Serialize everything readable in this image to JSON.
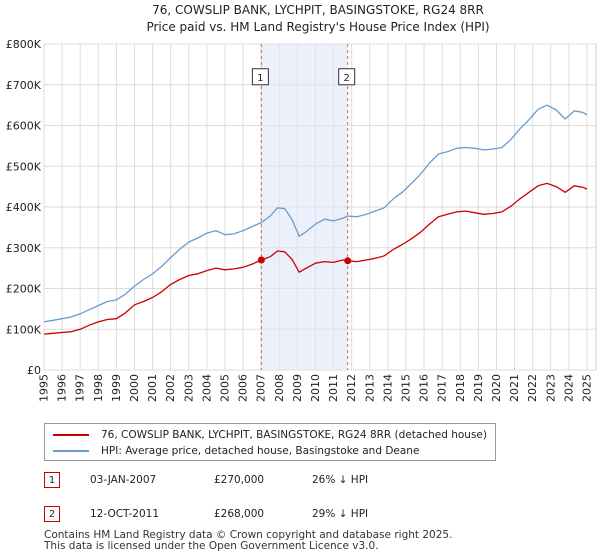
{
  "chart_data": {
    "type": "line",
    "title": "76, COWSLIP BANK, LYCHPIT, BASINGSTOKE, RG24 8RR",
    "subtitle": "Price paid vs. HM Land Registry's House Price Index (HPI)",
    "xlim": [
      1995,
      2025.5
    ],
    "ylim": [
      0,
      800000
    ],
    "y_ticks": [
      0,
      100000,
      200000,
      300000,
      400000,
      500000,
      600000,
      700000,
      800000
    ],
    "y_tick_labels": [
      "£0",
      "£100K",
      "£200K",
      "£300K",
      "£400K",
      "£500K",
      "£600K",
      "£700K",
      "£800K"
    ],
    "x_ticks": [
      1995,
      1996,
      1997,
      1998,
      1999,
      2000,
      2001,
      2002,
      2003,
      2004,
      2005,
      2006,
      2007,
      2008,
      2009,
      2010,
      2011,
      2012,
      2013,
      2014,
      2015,
      2016,
      2017,
      2018,
      2019,
      2020,
      2021,
      2022,
      2023,
      2024,
      2025
    ],
    "x_tick_labels": [
      "1995",
      "1996",
      "1997",
      "1998",
      "1999",
      "2000",
      "2001",
      "2002",
      "2003",
      "2004",
      "2005",
      "2006",
      "2007",
      "2008",
      "2009",
      "2010",
      "2011",
      "2012",
      "2013",
      "2014",
      "2015",
      "2016",
      "2017",
      "2018",
      "2019",
      "2020",
      "2021",
      "2022",
      "2023",
      "2024",
      "2025"
    ],
    "grid": true,
    "shaded_region": [
      2007.01,
      2011.78
    ],
    "series": [
      {
        "name": "76, COWSLIP BANK, LYCHPIT, BASINGSTOKE, RG24 8RR (detached house)",
        "color": "#cc0000",
        "points": [
          [
            1995.0,
            88000
          ],
          [
            1995.5,
            90000
          ],
          [
            1996.0,
            92000
          ],
          [
            1996.5,
            94000
          ],
          [
            1997.0,
            100000
          ],
          [
            1997.5,
            110000
          ],
          [
            1998.0,
            118000
          ],
          [
            1998.5,
            124000
          ],
          [
            1999.0,
            126000
          ],
          [
            1999.5,
            140000
          ],
          [
            2000.0,
            160000
          ],
          [
            2000.5,
            168000
          ],
          [
            2001.0,
            178000
          ],
          [
            2001.5,
            192000
          ],
          [
            2002.0,
            210000
          ],
          [
            2002.5,
            222000
          ],
          [
            2003.0,
            232000
          ],
          [
            2003.5,
            236000
          ],
          [
            2004.0,
            244000
          ],
          [
            2004.5,
            250000
          ],
          [
            2005.0,
            246000
          ],
          [
            2005.5,
            248000
          ],
          [
            2006.0,
            252000
          ],
          [
            2006.5,
            260000
          ],
          [
            2007.01,
            270000
          ],
          [
            2007.5,
            278000
          ],
          [
            2007.9,
            292000
          ],
          [
            2008.3,
            290000
          ],
          [
            2008.7,
            272000
          ],
          [
            2009.1,
            240000
          ],
          [
            2009.5,
            250000
          ],
          [
            2010.0,
            262000
          ],
          [
            2010.5,
            266000
          ],
          [
            2011.0,
            264000
          ],
          [
            2011.5,
            270000
          ],
          [
            2011.78,
            268000
          ],
          [
            2012.3,
            266000
          ],
          [
            2012.8,
            270000
          ],
          [
            2013.3,
            274000
          ],
          [
            2013.8,
            280000
          ],
          [
            2014.3,
            296000
          ],
          [
            2014.8,
            308000
          ],
          [
            2015.3,
            322000
          ],
          [
            2015.8,
            338000
          ],
          [
            2016.3,
            358000
          ],
          [
            2016.8,
            376000
          ],
          [
            2017.3,
            382000
          ],
          [
            2017.8,
            388000
          ],
          [
            2018.3,
            390000
          ],
          [
            2018.8,
            386000
          ],
          [
            2019.3,
            382000
          ],
          [
            2019.8,
            384000
          ],
          [
            2020.3,
            388000
          ],
          [
            2020.8,
            402000
          ],
          [
            2021.3,
            420000
          ],
          [
            2021.8,
            436000
          ],
          [
            2022.3,
            452000
          ],
          [
            2022.8,
            458000
          ],
          [
            2023.3,
            450000
          ],
          [
            2023.8,
            436000
          ],
          [
            2024.3,
            452000
          ],
          [
            2024.8,
            448000
          ],
          [
            2025.0,
            444000
          ]
        ]
      },
      {
        "name": "HPI: Average price, detached house, Basingstoke and Deane",
        "color": "#6b9bd2",
        "points": [
          [
            1995.0,
            118000
          ],
          [
            1995.5,
            122000
          ],
          [
            1996.0,
            126000
          ],
          [
            1996.5,
            130000
          ],
          [
            1997.0,
            138000
          ],
          [
            1997.5,
            148000
          ],
          [
            1998.0,
            158000
          ],
          [
            1998.5,
            168000
          ],
          [
            1999.0,
            172000
          ],
          [
            1999.5,
            186000
          ],
          [
            2000.0,
            206000
          ],
          [
            2000.5,
            222000
          ],
          [
            2001.0,
            236000
          ],
          [
            2001.5,
            254000
          ],
          [
            2002.0,
            276000
          ],
          [
            2002.5,
            296000
          ],
          [
            2003.0,
            314000
          ],
          [
            2003.5,
            324000
          ],
          [
            2004.0,
            336000
          ],
          [
            2004.5,
            342000
          ],
          [
            2005.0,
            332000
          ],
          [
            2005.5,
            334000
          ],
          [
            2006.0,
            342000
          ],
          [
            2006.5,
            352000
          ],
          [
            2007.01,
            362000
          ],
          [
            2007.5,
            378000
          ],
          [
            2007.9,
            398000
          ],
          [
            2008.3,
            396000
          ],
          [
            2008.7,
            370000
          ],
          [
            2009.1,
            328000
          ],
          [
            2009.5,
            340000
          ],
          [
            2010.0,
            358000
          ],
          [
            2010.5,
            370000
          ],
          [
            2011.0,
            366000
          ],
          [
            2011.5,
            372000
          ],
          [
            2011.78,
            378000
          ],
          [
            2012.3,
            376000
          ],
          [
            2012.8,
            382000
          ],
          [
            2013.3,
            390000
          ],
          [
            2013.8,
            398000
          ],
          [
            2014.3,
            420000
          ],
          [
            2014.8,
            436000
          ],
          [
            2015.3,
            458000
          ],
          [
            2015.8,
            480000
          ],
          [
            2016.3,
            508000
          ],
          [
            2016.8,
            530000
          ],
          [
            2017.3,
            536000
          ],
          [
            2017.8,
            544000
          ],
          [
            2018.3,
            546000
          ],
          [
            2018.8,
            544000
          ],
          [
            2019.3,
            540000
          ],
          [
            2019.8,
            542000
          ],
          [
            2020.3,
            546000
          ],
          [
            2020.8,
            566000
          ],
          [
            2021.3,
            592000
          ],
          [
            2021.8,
            614000
          ],
          [
            2022.3,
            640000
          ],
          [
            2022.8,
            650000
          ],
          [
            2023.3,
            638000
          ],
          [
            2023.8,
            616000
          ],
          [
            2024.3,
            636000
          ],
          [
            2024.8,
            632000
          ],
          [
            2025.0,
            626000
          ]
        ]
      }
    ],
    "markers": [
      {
        "label": "1",
        "x": 2007.01,
        "y": 270000
      },
      {
        "label": "2",
        "x": 2011.78,
        "y": 268000
      }
    ]
  },
  "legend": [
    {
      "label": "76, COWSLIP BANK, LYCHPIT, BASINGSTOKE, RG24 8RR (detached house)",
      "color": "#cc0000"
    },
    {
      "label": "HPI: Average price, detached house, Basingstoke and Deane",
      "color": "#6b9bd2"
    }
  ],
  "sales": [
    {
      "num": "1",
      "date": "03-JAN-2007",
      "price": "£270,000",
      "hpi": "26% ↓ HPI"
    },
    {
      "num": "2",
      "date": "12-OCT-2011",
      "price": "£268,000",
      "hpi": "29% ↓ HPI"
    }
  ],
  "footer": {
    "line1": "Contains HM Land Registry data © Crown copyright and database right 2025.",
    "line2": "This data is licensed under the Open Government Licence v3.0."
  }
}
